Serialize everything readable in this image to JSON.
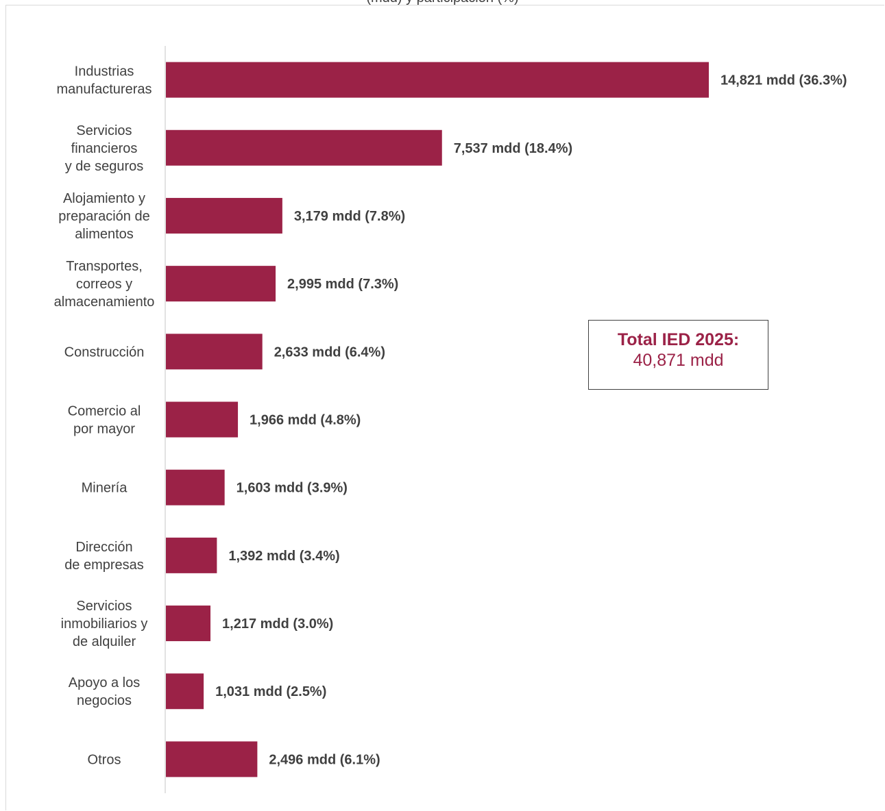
{
  "title_partial": "(mdd) y participación (%)",
  "total_box": {
    "label": "Total IED 2025:",
    "value": "40,871 mdd"
  },
  "colors": {
    "bar": "#9b2247",
    "text": "#404040",
    "axis": "#d9d9d9"
  },
  "chart_data": {
    "type": "bar",
    "orientation": "horizontal",
    "title": "",
    "xlabel": "",
    "ylabel": "",
    "grid": false,
    "unit": "mdd",
    "categories": [
      [
        "Industrias",
        "manufactureras"
      ],
      [
        "Servicios",
        "financieros",
        "y de seguros"
      ],
      [
        "Alojamiento y",
        "preparación de",
        "alimentos"
      ],
      [
        "Transportes,",
        "correos y",
        "almacenamiento"
      ],
      [
        "Construcción"
      ],
      [
        "Comercio al",
        "por mayor"
      ],
      [
        "Minería"
      ],
      [
        "Dirección",
        "de empresas"
      ],
      [
        "Servicios",
        "inmobiliarios y",
        "de alquiler"
      ],
      [
        "Apoyo a los",
        "negocios"
      ],
      [
        "Otros"
      ]
    ],
    "values": [
      14821,
      7537,
      3179,
      2995,
      2633,
      1966,
      1603,
      1392,
      1217,
      1031,
      2496
    ],
    "data_labels": [
      "14,821 mdd (36.3%)",
      "7,537 mdd (18.4%)",
      "3,179 mdd (7.8%)",
      "2,995 mdd (7.3%)",
      "2,633 mdd (6.4%)",
      "1,966 mdd (4.8%)",
      "1,603 mdd (3.9%)",
      "1,392 mdd (3.4%)",
      "1,217 mdd (3.0%)",
      "1,031 mdd (2.5%)",
      "2,496 mdd (6.1%)"
    ]
  }
}
